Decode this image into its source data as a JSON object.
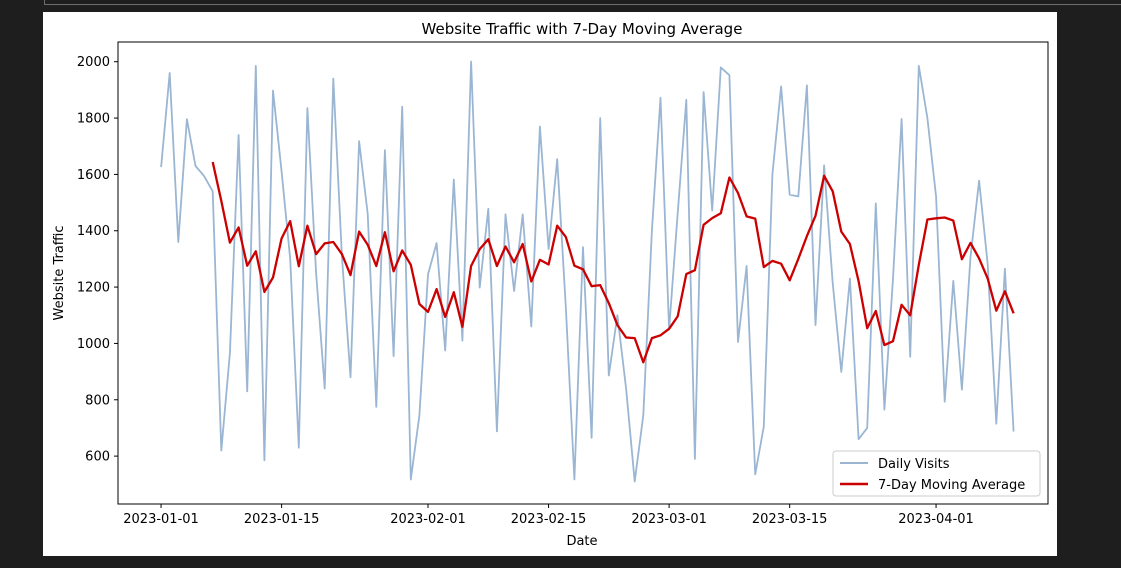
{
  "chart_data": {
    "type": "line",
    "title": "Website Traffic with 7-Day Moving Average",
    "xlabel": "Date",
    "ylabel": "Website Traffic",
    "x_start": "2023-01-01",
    "x_end": "2023-04-09",
    "xlim": [
      "2022-12-27",
      "2023-04-14"
    ],
    "ylim": [
      430,
      2070
    ],
    "y_ticks": [
      600,
      800,
      1000,
      1200,
      1400,
      1600,
      1800,
      2000
    ],
    "x_ticks": [
      "2023-01-01",
      "2023-01-15",
      "2023-02-01",
      "2023-02-15",
      "2023-03-01",
      "2023-03-15",
      "2023-04-01"
    ],
    "legend_position": "lower right",
    "grid": false,
    "series": [
      {
        "name": "Daily Visits",
        "color": "#9ab6d3",
        "values": [
          1626,
          1960,
          1360,
          1796,
          1630,
          1594,
          1540,
          620,
          965,
          1740,
          830,
          1985,
          585,
          1898,
          1610,
          1300,
          630,
          1835,
          1250,
          840,
          1940,
          1310,
          880,
          1718,
          1460,
          775,
          1686,
          955,
          1840,
          517,
          745,
          1245,
          1356,
          975,
          1582,
          1010,
          2000,
          1198,
          1478,
          688,
          1458,
          1186,
          1458,
          1060,
          1770,
          1335,
          1654,
          1130,
          517,
          1342,
          665,
          1800,
          886,
          1100,
          840,
          510,
          745,
          1400,
          1872,
          1050,
          1462,
          1865,
          590,
          1892,
          1472,
          1980,
          1952,
          1005,
          1275,
          535,
          705,
          1600,
          1912,
          1528,
          1522,
          1916,
          1065,
          1632,
          1215,
          899,
          1230,
          660,
          700,
          1497,
          765,
          1230,
          1797,
          953,
          1985,
          1800,
          1520,
          793,
          1222,
          836,
          1307,
          1578,
          1280,
          715,
          1265,
          687
        ]
      },
      {
        "name": "7-Day Moving Average",
        "color": "#cc0000",
        "values": [
          null,
          null,
          null,
          null,
          null,
          null,
          1644,
          1506,
          1358,
          1412,
          1276,
          1327,
          1183,
          1234,
          1373,
          1434,
          1274,
          1418,
          1317,
          1355,
          1360,
          1317,
          1243,
          1397,
          1350,
          1275,
          1395,
          1256,
          1330,
          1279,
          1140,
          1112,
          1193,
          1094,
          1182,
          1059,
          1275,
          1335,
          1370,
          1275,
          1344,
          1288,
          1353,
          1220,
          1297,
          1280,
          1418,
          1378,
          1276,
          1263,
          1203,
          1207,
          1143,
          1065,
          1021,
          1019,
          933,
          1019,
          1029,
          1052,
          1096,
          1246,
          1260,
          1421,
          1445,
          1462,
          1589,
          1534,
          1451,
          1443,
          1271,
          1293,
          1283,
          1224,
          1300,
          1381,
          1453,
          1595,
          1540,
          1397,
          1353,
          1221,
          1054,
          1115,
          994,
          1008,
          1137,
          1100,
          1279,
          1440,
          1444,
          1447,
          1436,
          1299,
          1357,
          1302,
          1230,
          1116,
          1185,
          1107
        ]
      }
    ]
  }
}
